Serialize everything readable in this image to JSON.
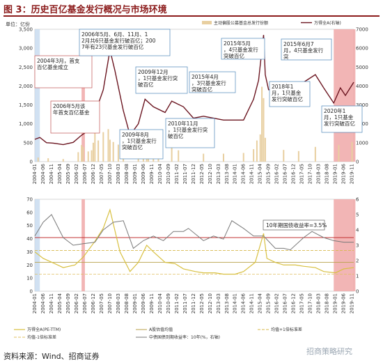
{
  "header": {
    "title": "图 3：历史百亿基金发行概况与市场环境"
  },
  "footer": {
    "source": "资料来源：Wind、招商证券",
    "watermark": "招商策略研究"
  },
  "colors": {
    "title": "#8b1a1a",
    "band_blue": "#c9dcf0",
    "band_red": "#f0a8a8",
    "bars": "#e8cfa0",
    "index_line": "#6b1520",
    "pe_line": "#7a7a7a",
    "pe_mean": "#b8a24a",
    "pe_plus": "#d8b84a",
    "pe_minus": "#e0c060",
    "bond_yield": "#d8c040",
    "bond_ref": "#c03030"
  },
  "x_axis_labels": [
    "2004-01",
    "2004-06",
    "2004-11",
    "2005-04",
    "2005-09",
    "2006-02",
    "2006-07",
    "2006-12",
    "2007-05",
    "2007-10",
    "2008-03",
    "2008-08",
    "2009-01",
    "2009-06",
    "2009-11",
    "2010-04",
    "2010-09",
    "2011-02",
    "2011-07",
    "2011-12",
    "2012-05",
    "2012-10",
    "2013-03",
    "2013-08",
    "2014-01",
    "2014-06",
    "2014-11",
    "2015-04",
    "2015-09",
    "2016-02",
    "2016-07",
    "2016-12",
    "2017-05",
    "2017-10",
    "2018-03",
    "2018-08",
    "2019-01",
    "2019-06",
    "2019-11"
  ],
  "chart_data": [
    {
      "type": "bar",
      "title": "",
      "ylabel": "单位：亿份",
      "ylim": [
        0,
        3500
      ],
      "yticks": [
        "0",
        "500",
        "1,000",
        "1,500",
        "2,000",
        "2,500",
        "3,000",
        "3,500"
      ],
      "y2lim": [
        0,
        7000
      ],
      "y2ticks": [
        "0",
        "1000",
        "2000",
        "3000",
        "4000",
        "5000",
        "6000",
        "7000"
      ],
      "xrange": [
        "2004-01",
        "2019-12"
      ],
      "legend": [
        "主动偏股公募基金总发行份额",
        "万得全A(右轴)"
      ],
      "legend_position": "top",
      "highlight_bands": [
        {
          "start": "2004-01",
          "end": "2004-04",
          "color": "band_blue"
        },
        {
          "start": "2006-05",
          "end": "2006-07",
          "color": "band_red"
        },
        {
          "start": "2018-12",
          "end": "2020-01",
          "color": "band_red"
        }
      ],
      "series": [
        {
          "name": "主动偏股公募基金总发行份额",
          "type": "bar",
          "x": [
            "2004-03",
            "2004-09",
            "2005-06",
            "2006-03",
            "2006-05",
            "2006-06",
            "2006-09",
            "2006-11",
            "2006-12",
            "2007-01",
            "2007-03",
            "2007-06",
            "2007-09",
            "2007-10",
            "2007-12",
            "2008-03",
            "2008-06",
            "2009-03",
            "2009-06",
            "2009-08",
            "2009-09",
            "2009-12",
            "2010-03",
            "2010-11",
            "2011-03",
            "2012-06",
            "2013-06",
            "2014-06",
            "2014-12",
            "2015-02",
            "2015-04",
            "2015-05",
            "2015-06",
            "2015-07",
            "2016-06",
            "2017-03",
            "2018-01",
            "2019-03",
            "2019-11"
          ],
          "values": [
            110,
            90,
            70,
            250,
            440,
            390,
            270,
            300,
            500,
            780,
            560,
            780,
            860,
            580,
            520,
            450,
            330,
            250,
            390,
            420,
            310,
            390,
            230,
            390,
            300,
            210,
            210,
            230,
            330,
            560,
            720,
            1980,
            1680,
            630,
            310,
            280,
            390,
            440,
            520
          ]
        },
        {
          "name": "万得全A(右轴)",
          "type": "line",
          "axis": "right",
          "x": [
            "2004-01",
            "2004-04",
            "2004-08",
            "2004-12",
            "2005-06",
            "2005-12",
            "2006-05",
            "2006-10",
            "2007-02",
            "2007-06",
            "2007-10",
            "2008-01",
            "2008-06",
            "2008-10",
            "2009-03",
            "2009-07",
            "2009-12",
            "2010-07",
            "2010-11",
            "2011-06",
            "2011-12",
            "2012-06",
            "2012-12",
            "2013-06",
            "2014-06",
            "2014-12",
            "2015-03",
            "2015-06",
            "2015-07",
            "2015-09",
            "2016-01",
            "2016-06",
            "2017-06",
            "2018-01",
            "2018-06",
            "2018-12",
            "2019-04",
            "2019-07",
            "2019-12"
          ],
          "values": [
            1180,
            1280,
            1000,
            980,
            900,
            1020,
            1400,
            1700,
            2800,
            3800,
            5900,
            4800,
            2700,
            1400,
            2000,
            3300,
            2900,
            2600,
            3200,
            2900,
            2300,
            2400,
            2300,
            2200,
            2200,
            3300,
            4300,
            6700,
            4600,
            3800,
            3800,
            3600,
            4200,
            4600,
            3900,
            3100,
            3900,
            3500,
            4200
          ]
        }
      ],
      "annotations": [
        "2004年3月，首支百亿基金成立",
        "2006年5月该年首支百亿基金",
        "2006年5月、6月、11月、12月共6只基金发行破百亿；2007年有23只基金发行破百亿",
        "2009年8月，1只基金发行突破百亿",
        "2009年12月，1只基金发行突破百亿",
        "2010年11月，1只基金发行突破百亿",
        "2015年4月，3只基金发行突破百亿",
        "2015年5月，4只基金发行突破百亿",
        "2015年6月7月，4只基金发行突",
        "2018年1月，1只基金发行突破百亿",
        "2020年1月，1只基金发行突破百亿"
      ]
    },
    {
      "type": "line",
      "title": "",
      "ylim": [
        0,
        70
      ],
      "yticks": [
        "0",
        "10",
        "20",
        "30",
        "40",
        "50",
        "60",
        "70"
      ],
      "y2lim": [
        0,
        6
      ],
      "y2ticks": [
        "0",
        "1",
        "2",
        "3",
        "4",
        "5",
        "6"
      ],
      "xrange": [
        "2004-01",
        "2019-12"
      ],
      "legend": [
        "万得全A(PE-TTM)",
        "A股估值均值",
        "均值+1倍标准差",
        "均值-1倍标准差",
        "中债国债到期收益率：10年(%，右轴)"
      ],
      "legend_position": "bottom",
      "annotation": "10年期国债收益率=3.5%",
      "series": [
        {
          "name": "万得全A(PE-TTM)",
          "x": [
            "2004-01",
            "2004-06",
            "2005-01",
            "2005-06",
            "2006-01",
            "2006-06",
            "2007-01",
            "2007-06",
            "2007-10",
            "2008-04",
            "2008-10",
            "2009-03",
            "2009-08",
            "2009-12",
            "2010-07",
            "2011-01",
            "2011-06",
            "2012-01",
            "2012-06",
            "2013-01",
            "2013-06",
            "2014-01",
            "2014-06",
            "2015-01",
            "2015-06",
            "2015-08",
            "2016-01",
            "2016-06",
            "2017-01",
            "2017-06",
            "2018-01",
            "2018-06",
            "2019-01",
            "2019-06",
            "2019-12"
          ],
          "values": [
            30,
            25,
            21,
            18,
            20,
            26,
            38,
            48,
            62,
            30,
            15,
            22,
            35,
            30,
            22,
            21,
            17,
            15,
            14,
            14,
            13,
            13,
            15,
            22,
            44,
            25,
            22,
            20,
            20,
            19,
            18,
            15,
            14,
            17,
            18
          ]
        },
        {
          "name": "A股估值均值",
          "values": [
            22
          ]
        },
        {
          "name": "均值+1倍标准差",
          "values": [
            31
          ]
        },
        {
          "name": "均值-1倍标准差",
          "values": [
            13
          ]
        },
        {
          "name": "中债国债到期收益率：10年(%，右轴)",
          "x": [
            "2004-01",
            "2004-06",
            "2004-11",
            "2005-06",
            "2005-12",
            "2006-06",
            "2007-01",
            "2007-06",
            "2007-12",
            "2008-06",
            "2008-12",
            "2009-06",
            "2009-12",
            "2010-06",
            "2010-12",
            "2011-06",
            "2011-09",
            "2012-06",
            "2012-12",
            "2013-06",
            "2013-11",
            "2014-06",
            "2014-12",
            "2015-06",
            "2016-01",
            "2016-06",
            "2016-10",
            "2017-06",
            "2017-11",
            "2018-06",
            "2018-12",
            "2019-06",
            "2019-12"
          ],
          "values": [
            3.6,
            4.5,
            5.0,
            3.5,
            3.0,
            3.1,
            3.2,
            4.0,
            4.5,
            4.6,
            2.8,
            3.3,
            3.6,
            3.3,
            3.9,
            3.9,
            4.1,
            3.3,
            3.6,
            3.4,
            4.6,
            4.1,
            3.6,
            3.6,
            2.8,
            2.8,
            2.7,
            3.5,
            3.9,
            3.5,
            3.3,
            3.2,
            3.2
          ]
        },
        {
          "name": "10年期国债收益率=3.5%",
          "values": [
            3.5
          ]
        }
      ]
    }
  ]
}
